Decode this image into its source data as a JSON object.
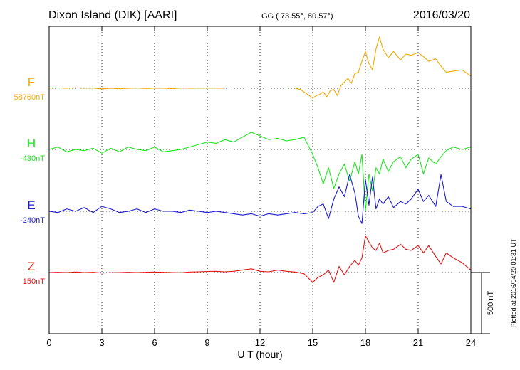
{
  "header": {
    "station": "Dixon Island (DIK)  [AARI]",
    "coords": "GG ( 73.55°,  80.57°)",
    "date": "2016/03/20"
  },
  "footer": {
    "plotted": "Plotted at 2016/04/20 01:31  UT"
  },
  "colors": {
    "F": "#f5a800",
    "H": "#19e619",
    "E": "#1a1ad0",
    "Z": "#e01818"
  },
  "chart_data": {
    "type": "line",
    "xlabel": "U T (hour)",
    "xlim": [
      0,
      24
    ],
    "xticks": [
      "0",
      "3",
      "6",
      "9",
      "12",
      "15",
      "18",
      "21",
      "24"
    ],
    "scale_label": "500 nT",
    "scale_nT": 500,
    "series": [
      {
        "name": "F",
        "baseline": "58760nT",
        "x": [
          0,
          0.5,
          1,
          1.5,
          2,
          2.5,
          3,
          3.5,
          4,
          4.5,
          5,
          5.5,
          6,
          6.5,
          7,
          7.5,
          8,
          8.5,
          9,
          9.5,
          10,
          null,
          14,
          14.3,
          14.6,
          14.9,
          15.0,
          15.2,
          15.4,
          15.6,
          15.8,
          16.0,
          16.2,
          16.4,
          16.6,
          16.8,
          17.0,
          17.2,
          17.4,
          17.6,
          17.8,
          18.0,
          18.2,
          18.4,
          18.6,
          18.8,
          19.0,
          19.3,
          19.6,
          20.0,
          20.3,
          20.6,
          21.0,
          21.3,
          21.6,
          22.0,
          22.3,
          22.6,
          23.0,
          23.5,
          24
        ],
        "y": [
          2,
          3,
          0,
          4,
          1,
          2,
          -5,
          0,
          -4,
          0,
          2,
          -2,
          1,
          0,
          -3,
          2,
          0,
          1,
          2,
          1,
          0,
          null,
          0,
          -10,
          -40,
          -70,
          -80,
          -60,
          -50,
          -30,
          -70,
          -20,
          -10,
          -60,
          20,
          50,
          80,
          40,
          120,
          130,
          220,
          300,
          200,
          150,
          320,
          420,
          320,
          250,
          300,
          230,
          280,
          270,
          290,
          260,
          220,
          240,
          180,
          130,
          140,
          150,
          100
        ]
      },
      {
        "name": "H",
        "baseline": "-430nT",
        "x": [
          0,
          0.5,
          1,
          1.5,
          2,
          2.5,
          3,
          3.5,
          4,
          4.5,
          5,
          5.5,
          6,
          6.5,
          7,
          7.5,
          8,
          8.5,
          9,
          9.5,
          10,
          10.5,
          11,
          11.5,
          12,
          12.5,
          13,
          13.5,
          14,
          14.5,
          15.0,
          15.3,
          15.6,
          15.9,
          16.2,
          16.5,
          16.8,
          17.1,
          17.4,
          17.6,
          17.8,
          18.0,
          18.2,
          18.4,
          18.6,
          18.8,
          19.0,
          19.3,
          19.6,
          20,
          20.3,
          20.6,
          21,
          21.3,
          21.6,
          22,
          22.3,
          22.6,
          23,
          23.5,
          24
        ],
        "y": [
          0,
          20,
          -20,
          0,
          -10,
          10,
          -30,
          10,
          -20,
          20,
          0,
          -10,
          20,
          -20,
          -10,
          0,
          20,
          40,
          60,
          50,
          80,
          60,
          100,
          140,
          110,
          80,
          90,
          70,
          80,
          100,
          -40,
          -150,
          -280,
          -150,
          -320,
          -200,
          -120,
          -260,
          -100,
          -200,
          -40,
          -500,
          -200,
          -340,
          -150,
          -200,
          -80,
          -180,
          -100,
          -60,
          -150,
          -80,
          -40,
          -200,
          -70,
          -120,
          -60,
          -10,
          20,
          0,
          20
        ]
      },
      {
        "name": "E",
        "baseline": "-240nT",
        "x": [
          0,
          0.5,
          1,
          1.5,
          2,
          2.5,
          3,
          3.5,
          4,
          4.5,
          5,
          5.5,
          6,
          6.5,
          7,
          7.5,
          8,
          8.5,
          9,
          9.5,
          10,
          10.5,
          11,
          11.5,
          12,
          12.5,
          13,
          13.5,
          14,
          14.5,
          15.0,
          15.3,
          15.6,
          15.9,
          16.2,
          16.5,
          16.8,
          17.1,
          17.4,
          17.6,
          17.8,
          18.0,
          18.2,
          18.4,
          18.6,
          18.8,
          19.0,
          19.3,
          19.6,
          20,
          20.3,
          20.6,
          21,
          21.3,
          21.6,
          22,
          22.3,
          22.6,
          23,
          23.5,
          24
        ],
        "y": [
          0,
          -10,
          20,
          0,
          30,
          -10,
          40,
          20,
          -10,
          0,
          20,
          -10,
          20,
          0,
          0,
          -10,
          10,
          0,
          -10,
          0,
          -10,
          -20,
          -30,
          -20,
          -40,
          -20,
          -30,
          -20,
          -10,
          -20,
          -10,
          40,
          60,
          -60,
          100,
          200,
          120,
          300,
          150,
          -40,
          -100,
          260,
          50,
          280,
          20,
          100,
          60,
          120,
          30,
          80,
          60,
          100,
          180,
          80,
          130,
          40,
          300,
          80,
          40,
          40,
          20
        ]
      },
      {
        "name": "Z",
        "baseline": "150nT",
        "x": [
          0,
          0.5,
          1,
          1.5,
          2,
          2.5,
          3,
          3.5,
          4,
          4.5,
          5,
          5.5,
          6,
          6.5,
          7,
          7.5,
          8,
          8.5,
          9,
          9.5,
          10,
          10.5,
          11,
          11.5,
          12,
          12.5,
          13,
          13.5,
          14,
          14.5,
          15.0,
          15.3,
          15.6,
          15.9,
          16.2,
          16.5,
          16.8,
          17.1,
          17.4,
          17.6,
          17.8,
          18.0,
          18.2,
          18.4,
          18.6,
          18.8,
          19.0,
          19.3,
          19.6,
          20,
          20.3,
          20.6,
          21,
          21.3,
          21.6,
          22,
          22.3,
          22.6,
          23,
          23.5,
          24
        ],
        "y": [
          0,
          2,
          0,
          4,
          0,
          2,
          -4,
          -2,
          0,
          2,
          0,
          2,
          4,
          2,
          0,
          -2,
          4,
          6,
          8,
          10,
          6,
          10,
          20,
          30,
          10,
          6,
          20,
          10,
          4,
          -10,
          -80,
          -40,
          -20,
          20,
          -80,
          50,
          -20,
          50,
          100,
          60,
          120,
          300,
          250,
          200,
          180,
          240,
          160,
          180,
          190,
          230,
          190,
          180,
          220,
          160,
          220,
          130,
          70,
          160,
          120,
          80,
          20
        ]
      }
    ]
  }
}
